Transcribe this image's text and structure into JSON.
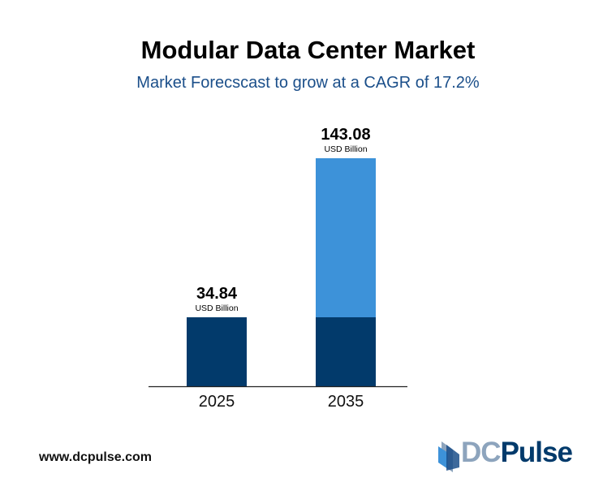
{
  "title": "Modular Data Center Market",
  "subtitle": "Market Forecscast to grow at a CAGR of 17.2%",
  "footer": {
    "url": "www.dcpulse.com"
  },
  "logo": {
    "text_dc": "DC",
    "text_pulse": "Pulse"
  },
  "colors": {
    "base": "#023a6b",
    "growth": "#3d92d9",
    "axis": "#222222"
  },
  "chart_data": {
    "type": "bar",
    "stacked": true,
    "categories": [
      "2025",
      "2035"
    ],
    "values": [
      34.84,
      143.08
    ],
    "data_labels": [
      "34.84",
      "143.08"
    ],
    "unit_label": "USD Billion",
    "series": [
      {
        "values": [
          34.84,
          34.84
        ],
        "color": "#023a6b"
      },
      {
        "values": [
          0,
          108.24
        ],
        "color": "#3d92d9"
      }
    ],
    "grid": false,
    "legend": "none"
  }
}
